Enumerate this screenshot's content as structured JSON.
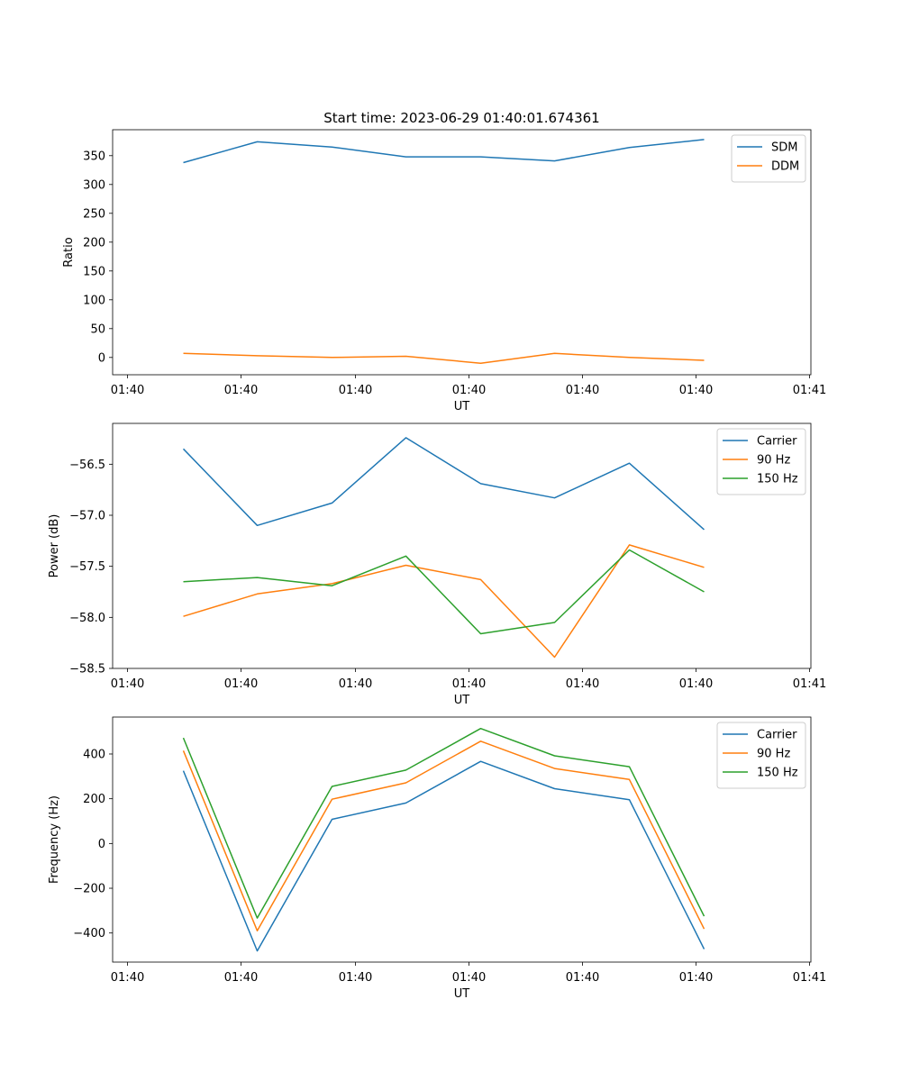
{
  "figure_title": "Start time: 2023-06-29 01:40:01.674361",
  "chart_data": [
    {
      "type": "line",
      "title": "Start time: 2023-06-29 01:40:01.674361",
      "xlabel": "UT",
      "ylabel": "Ratio",
      "x_ticks": [
        "01:40",
        "01:40",
        "01:40",
        "01:40",
        "01:40",
        "01:40",
        "01:40",
        "01:41"
      ],
      "y_ticks": [
        "0",
        "50",
        "100",
        "150",
        "200",
        "250",
        "300",
        "350"
      ],
      "ylim": [
        -30,
        395
      ],
      "grid": false,
      "legend_position": "top-right",
      "series": [
        {
          "name": "SDM",
          "color": "#1f77b4",
          "values": [
            338,
            374,
            365,
            348,
            348,
            341,
            364,
            378
          ]
        },
        {
          "name": "DDM",
          "color": "#ff7f0e",
          "values": [
            7,
            3,
            0,
            2,
            -10,
            7,
            0,
            -5
          ]
        }
      ]
    },
    {
      "type": "line",
      "xlabel": "UT",
      "ylabel": "Power (dB)",
      "x_ticks": [
        "01:40",
        "01:40",
        "01:40",
        "01:40",
        "01:40",
        "01:40",
        "01:40",
        "01:41"
      ],
      "y_ticks": [
        "−58.5",
        "−58.0",
        "−57.5",
        "−57.0",
        "−56.5"
      ],
      "ylim": [
        -58.5,
        -56.1
      ],
      "grid": false,
      "legend_position": "top-right",
      "series": [
        {
          "name": "Carrier",
          "color": "#1f77b4",
          "values": [
            -56.35,
            -57.1,
            -56.88,
            -56.24,
            -56.69,
            -56.83,
            -56.49,
            -57.14
          ]
        },
        {
          "name": "90 Hz",
          "color": "#ff7f0e",
          "values": [
            -57.99,
            -57.77,
            -57.67,
            -57.49,
            -57.63,
            -58.39,
            -57.29,
            -57.51
          ]
        },
        {
          "name": "150 Hz",
          "color": "#2ca02c",
          "values": [
            -57.65,
            -57.61,
            -57.69,
            -57.4,
            -58.16,
            -58.05,
            -57.34,
            -57.75
          ]
        }
      ]
    },
    {
      "type": "line",
      "xlabel": "UT",
      "ylabel": "Frequency (Hz)",
      "x_ticks": [
        "01:40",
        "01:40",
        "01:40",
        "01:40",
        "01:40",
        "01:40",
        "01:40",
        "01:41"
      ],
      "y_ticks": [
        "−400",
        "−200",
        "0",
        "200",
        "400"
      ],
      "ylim": [
        -530,
        565
      ],
      "grid": false,
      "legend_position": "top-right",
      "series": [
        {
          "name": "Carrier",
          "color": "#1f77b4",
          "values": [
            325,
            -480,
            108,
            181,
            367,
            245,
            196,
            -472
          ]
        },
        {
          "name": "90 Hz",
          "color": "#ff7f0e",
          "values": [
            415,
            -390,
            198,
            271,
            457,
            335,
            286,
            -382
          ]
        },
        {
          "name": "150 Hz",
          "color": "#2ca02c",
          "values": [
            472,
            -333,
            255,
            328,
            514,
            392,
            343,
            -325
          ]
        }
      ]
    }
  ]
}
